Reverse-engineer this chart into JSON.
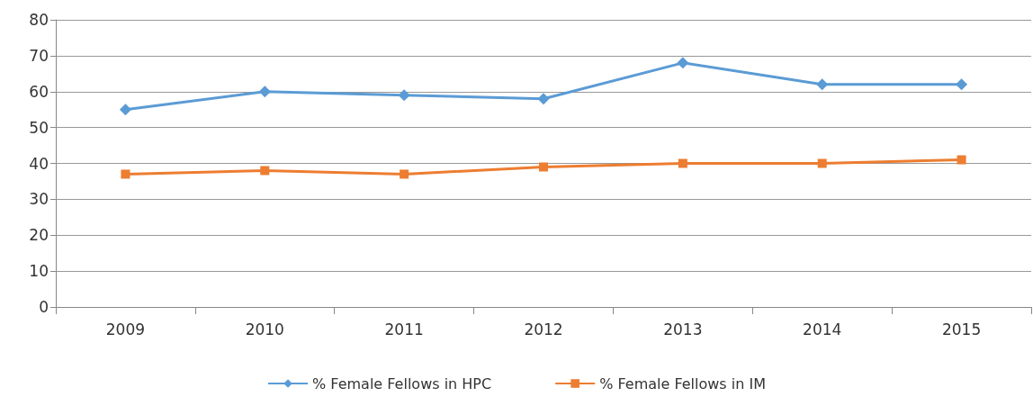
{
  "chart_data": {
    "type": "line",
    "categories": [
      "2009",
      "2010",
      "2011",
      "2012",
      "2013",
      "2014",
      "2015"
    ],
    "series": [
      {
        "name": "% Female Fellows in HPC",
        "color": "#5b9bd5",
        "marker": "diamond",
        "values": [
          55,
          60,
          59,
          58,
          68,
          62,
          62
        ]
      },
      {
        "name": "% Female Fellows in IM",
        "color": "#ed7d31",
        "marker": "square",
        "values": [
          37,
          38,
          37,
          39,
          40,
          40,
          41
        ]
      }
    ],
    "ylim": [
      0,
      80
    ],
    "yticks": [
      0,
      10,
      20,
      30,
      40,
      50,
      60,
      70,
      80
    ],
    "grid": "y",
    "legend": "bottom",
    "line_style": "solid"
  }
}
